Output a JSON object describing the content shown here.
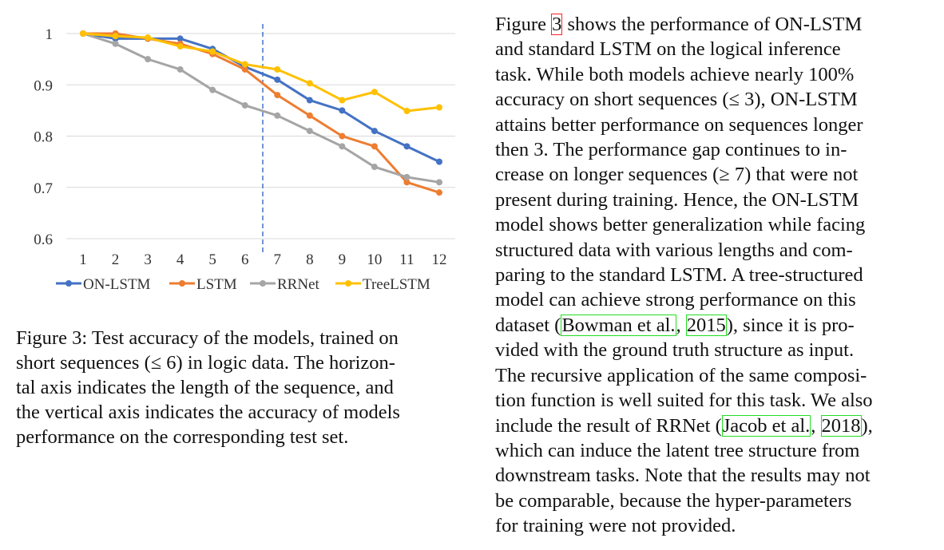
{
  "chart_data": {
    "type": "line",
    "x": [
      1,
      2,
      3,
      4,
      5,
      6,
      7,
      8,
      9,
      10,
      11,
      12
    ],
    "categories": [
      "1",
      "2",
      "3",
      "4",
      "5",
      "6",
      "7",
      "8",
      "9",
      "10",
      "11",
      "12"
    ],
    "ylim": [
      0.6,
      1.0
    ],
    "yticks": [
      0.6,
      0.7,
      0.8,
      0.9,
      1
    ],
    "ytick_labels": [
      "0.6",
      "0.7",
      "0.8",
      "0.9",
      "1"
    ],
    "grid": true,
    "legend_position": "bottom",
    "divider_after": 6,
    "series": [
      {
        "name": "ON-LSTM",
        "color": "#4472c4",
        "values": [
          1.0,
          0.99,
          0.99,
          0.99,
          0.97,
          0.935,
          0.91,
          0.87,
          0.85,
          0.81,
          0.78,
          0.75
        ]
      },
      {
        "name": "LSTM",
        "color": "#ed7d31",
        "values": [
          1.0,
          1.0,
          0.99,
          0.98,
          0.96,
          0.93,
          0.88,
          0.84,
          0.8,
          0.78,
          0.71,
          0.69
        ]
      },
      {
        "name": "RRNet",
        "color": "#a5a5a5",
        "values": [
          1.0,
          0.98,
          0.95,
          0.93,
          0.89,
          0.86,
          0.84,
          0.81,
          0.78,
          0.74,
          0.72,
          0.71
        ]
      },
      {
        "name": "TreeLSTM",
        "color": "#ffc000",
        "values": [
          1.0,
          0.995,
          0.992,
          0.975,
          0.965,
          0.94,
          0.93,
          0.903,
          0.87,
          0.886,
          0.849,
          0.856
        ]
      }
    ]
  },
  "caption": {
    "lines": [
      "Figure 3: Test accuracy of the models, trained on",
      "short sequences (≤ 6) in logic data. The horizon-",
      "tal axis indicates the length of the sequence, and",
      "the vertical axis indicates the accuracy of models",
      "performance on the corresponding test set."
    ]
  },
  "body": {
    "l1_a": "Figure ",
    "l1_ref": "3",
    "l1_b": " shows the performance of ON-LSTM",
    "l2": "and standard LSTM on the logical inference",
    "l3": "task. While both models achieve nearly 100%",
    "l4": "accuracy on short sequences (≤ 3), ON-LSTM",
    "l5": "attains better performance on sequences longer",
    "l6": "then 3. The performance gap continues to in-",
    "l7": "crease on longer sequences (≥ 7) that were not",
    "l8": "present during training. Hence, the ON-LSTM",
    "l9": "model shows better generalization while facing",
    "l10": "structured data with various lengths and com-",
    "l11": "paring to the standard LSTM. A tree-structured",
    "l12": "model can achieve strong performance on this",
    "l13_a": "dataset (",
    "l13_ref1": "Bowman et al.",
    "l13_b": ", ",
    "l13_ref2": "2015",
    "l13_c": "), since it is pro-",
    "l14": "vided with the ground truth structure as input.",
    "l15": "The recursive application of the same composi-",
    "l16": "tion function is well suited for this task. We also",
    "l17_a": "include the result of RRNet (",
    "l17_ref1": "Jacob et al.",
    "l17_b": ", ",
    "l17_ref2": "2018",
    "l17_c": "),",
    "l18": "which can induce the latent tree structure from",
    "l19": "downstream tasks. Note that the results may not",
    "l20": "be comparable, because the hyper-parameters",
    "l21": "for training were not provided."
  }
}
